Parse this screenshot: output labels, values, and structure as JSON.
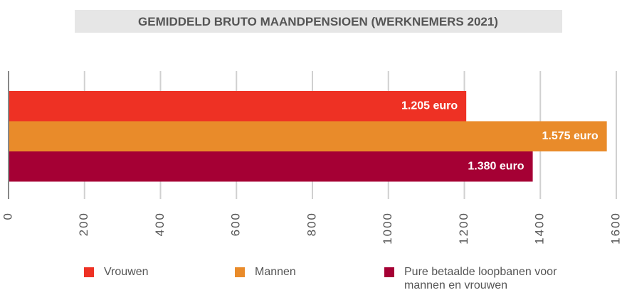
{
  "chart_data": {
    "type": "bar",
    "orientation": "horizontal",
    "title": "GEMIDDELD BRUTO MAANDPENSIOEN (WERKNEMERS 2021)",
    "series": [
      {
        "name": "Vrouwen",
        "color": "#ee3124",
        "values": [
          1205
        ],
        "value_labels": [
          "1.205 euro"
        ]
      },
      {
        "name": "Mannen",
        "color": "#e98b2a",
        "values": [
          1575
        ],
        "value_labels": [
          "1.575 euro"
        ]
      },
      {
        "name": "Pure betaalde loopbanen voor mannen en vrouwen",
        "color": "#a50034",
        "values": [
          1380
        ],
        "value_labels": [
          "1.380 euro"
        ]
      }
    ],
    "xlim": [
      0,
      1600
    ],
    "xticks": [
      0,
      200,
      400,
      600,
      800,
      1000,
      1200,
      1400,
      1600
    ],
    "grid": true
  }
}
